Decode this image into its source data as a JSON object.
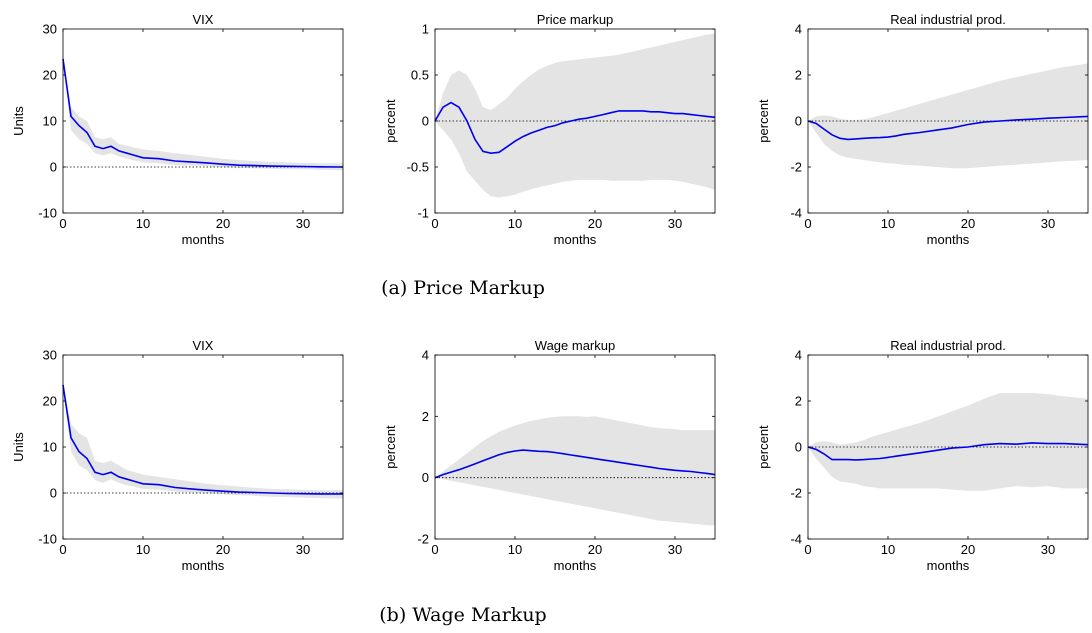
{
  "captions": [
    "(a) Price Markup",
    "(b) Wage Markup"
  ],
  "colors": {
    "line": "#0000ee",
    "band": "#e4e4e4",
    "zero": "#000000"
  },
  "chart_data": [
    {
      "type": "line",
      "group": "a",
      "title": "VIX",
      "xlabel": "months",
      "ylabel": "Units",
      "xlim": [
        0,
        35
      ],
      "ylim": [
        -10,
        30
      ],
      "xticks": [
        0,
        10,
        20,
        30
      ],
      "yticks": [
        -10,
        0,
        10,
        20,
        30
      ],
      "x": [
        0,
        1,
        2,
        3,
        4,
        5,
        6,
        7,
        8,
        9,
        10,
        12,
        14,
        16,
        18,
        20,
        22,
        24,
        26,
        28,
        30,
        32,
        35
      ],
      "series": [
        {
          "values": [
            23.5,
            11,
            9,
            7.5,
            4.5,
            4,
            4.5,
            3.5,
            3,
            2.5,
            2,
            1.8,
            1.3,
            1.1,
            0.9,
            0.6,
            0.4,
            0.3,
            0.2,
            0.15,
            0.1,
            0.05,
            0.0
          ]
        }
      ],
      "band_lower": [
        23.5,
        8,
        6,
        5,
        3,
        2.5,
        3,
        2.3,
        1.8,
        1.4,
        1,
        0.8,
        0.4,
        0.3,
        0.2,
        0,
        -0.2,
        -0.3,
        -0.4,
        -0.5,
        -0.5,
        -0.6,
        -0.7
      ],
      "band_upper": [
        23.5,
        13,
        11,
        10,
        6.5,
        6,
        6.5,
        5,
        4.6,
        4.2,
        3.8,
        3.5,
        3,
        2.6,
        2.2,
        1.8,
        1.5,
        1.3,
        1.1,
        1,
        0.9,
        0.8,
        0.8
      ]
    },
    {
      "type": "line",
      "group": "a",
      "title": "Price markup",
      "xlabel": "months",
      "ylabel": "percent",
      "xlim": [
        0,
        35
      ],
      "ylim": [
        -1,
        1
      ],
      "xticks": [
        0,
        10,
        20,
        30
      ],
      "yticks": [
        -1,
        -0.5,
        0,
        0.5,
        1
      ],
      "x": [
        0,
        1,
        2,
        3,
        4,
        5,
        6,
        7,
        8,
        9,
        10,
        11,
        12,
        13,
        14,
        15,
        16,
        17,
        18,
        19,
        20,
        21,
        22,
        23,
        24,
        25,
        26,
        27,
        28,
        29,
        30,
        31,
        32,
        33,
        34,
        35
      ],
      "series": [
        {
          "values": [
            0,
            0.15,
            0.2,
            0.15,
            0,
            -0.2,
            -0.33,
            -0.35,
            -0.34,
            -0.28,
            -0.22,
            -0.17,
            -0.13,
            -0.1,
            -0.07,
            -0.05,
            -0.02,
            0,
            0.02,
            0.03,
            0.05,
            0.07,
            0.09,
            0.11,
            0.11,
            0.11,
            0.11,
            0.1,
            0.1,
            0.09,
            0.08,
            0.08,
            0.07,
            0.06,
            0.05,
            0.04
          ]
        }
      ],
      "band_lower": [
        0,
        -0.1,
        -0.2,
        -0.35,
        -0.55,
        -0.65,
        -0.75,
        -0.82,
        -0.83,
        -0.82,
        -0.8,
        -0.77,
        -0.74,
        -0.72,
        -0.7,
        -0.68,
        -0.66,
        -0.65,
        -0.64,
        -0.64,
        -0.64,
        -0.64,
        -0.65,
        -0.65,
        -0.65,
        -0.65,
        -0.65,
        -0.64,
        -0.64,
        -0.64,
        -0.65,
        -0.66,
        -0.68,
        -0.7,
        -0.72,
        -0.75
      ],
      "band_upper": [
        0,
        0.3,
        0.5,
        0.55,
        0.5,
        0.35,
        0.15,
        0.12,
        0.18,
        0.25,
        0.35,
        0.43,
        0.5,
        0.56,
        0.6,
        0.63,
        0.65,
        0.66,
        0.67,
        0.68,
        0.69,
        0.7,
        0.71,
        0.72,
        0.74,
        0.76,
        0.78,
        0.8,
        0.82,
        0.84,
        0.86,
        0.88,
        0.9,
        0.92,
        0.94,
        0.95
      ]
    },
    {
      "type": "line",
      "group": "a",
      "title": "Real industrial prod.",
      "xlabel": "months",
      "ylabel": "percent",
      "xlim": [
        0,
        35
      ],
      "ylim": [
        -4,
        4
      ],
      "xticks": [
        0,
        10,
        20,
        30
      ],
      "yticks": [
        -4,
        -2,
        0,
        2,
        4
      ],
      "x": [
        0,
        1,
        2,
        3,
        4,
        5,
        6,
        7,
        8,
        9,
        10,
        11,
        12,
        14,
        16,
        18,
        20,
        22,
        24,
        26,
        28,
        30,
        32,
        35
      ],
      "series": [
        {
          "values": [
            0,
            -0.1,
            -0.35,
            -0.6,
            -0.75,
            -0.8,
            -0.78,
            -0.75,
            -0.73,
            -0.72,
            -0.7,
            -0.65,
            -0.58,
            -0.5,
            -0.4,
            -0.3,
            -0.15,
            -0.05,
            0,
            0.05,
            0.08,
            0.12,
            0.15,
            0.2
          ]
        }
      ],
      "band_lower": [
        0,
        -0.5,
        -1,
        -1.3,
        -1.5,
        -1.6,
        -1.65,
        -1.7,
        -1.75,
        -1.8,
        -1.83,
        -1.86,
        -1.9,
        -1.95,
        -2,
        -2.05,
        -2.05,
        -2,
        -1.95,
        -1.9,
        -1.85,
        -1.8,
        -1.75,
        -1.7
      ],
      "band_upper": [
        0,
        0.2,
        0.25,
        0.2,
        0.1,
        0.05,
        0.05,
        0.08,
        0.15,
        0.25,
        0.35,
        0.45,
        0.55,
        0.75,
        0.95,
        1.15,
        1.35,
        1.55,
        1.75,
        1.9,
        2.05,
        2.2,
        2.35,
        2.5
      ]
    },
    {
      "type": "line",
      "group": "b",
      "title": "VIX",
      "xlabel": "months",
      "ylabel": "Units",
      "xlim": [
        0,
        35
      ],
      "ylim": [
        -10,
        30
      ],
      "xticks": [
        0,
        10,
        20,
        30
      ],
      "yticks": [
        -10,
        0,
        10,
        20,
        30
      ],
      "x": [
        0,
        1,
        2,
        3,
        4,
        5,
        6,
        7,
        8,
        9,
        10,
        12,
        14,
        16,
        18,
        20,
        22,
        24,
        26,
        28,
        30,
        32,
        35
      ],
      "series": [
        {
          "values": [
            23.5,
            12,
            9,
            7.5,
            4.5,
            4,
            4.5,
            3.5,
            3,
            2.5,
            2,
            1.8,
            1.2,
            0.9,
            0.6,
            0.4,
            0.2,
            0.1,
            0,
            -0.1,
            -0.15,
            -0.2,
            -0.2
          ]
        }
      ],
      "band_lower": [
        23.5,
        9,
        6,
        5,
        2.8,
        2.2,
        3,
        2.2,
        1.7,
        1.3,
        0.9,
        0.7,
        0.3,
        0.1,
        -0.1,
        -0.3,
        -0.5,
        -0.6,
        -0.8,
        -0.9,
        -1,
        -1.1,
        -1.2
      ],
      "band_upper": [
        23.5,
        15,
        13,
        12,
        7,
        6.5,
        7,
        6,
        5,
        4.5,
        4,
        3.5,
        3,
        2.5,
        2,
        1.7,
        1.4,
        1.1,
        0.9,
        0.8,
        0.7,
        0.6,
        0.6
      ]
    },
    {
      "type": "line",
      "group": "b",
      "title": "Wage markup",
      "xlabel": "months",
      "ylabel": "percent",
      "xlim": [
        0,
        35
      ],
      "ylim": [
        -2,
        4
      ],
      "xticks": [
        0,
        10,
        20,
        30
      ],
      "yticks": [
        -2,
        0,
        2,
        4
      ],
      "x": [
        0,
        1,
        2,
        3,
        4,
        5,
        6,
        7,
        8,
        9,
        10,
        11,
        12,
        13,
        14,
        15,
        16,
        17,
        18,
        19,
        20,
        21,
        22,
        23,
        24,
        25,
        26,
        27,
        28,
        29,
        30,
        31,
        32,
        33,
        34,
        35
      ],
      "series": [
        {
          "values": [
            0,
            0.1,
            0.18,
            0.26,
            0.35,
            0.45,
            0.55,
            0.65,
            0.75,
            0.82,
            0.87,
            0.9,
            0.88,
            0.86,
            0.85,
            0.82,
            0.78,
            0.74,
            0.7,
            0.66,
            0.62,
            0.58,
            0.54,
            0.5,
            0.46,
            0.42,
            0.38,
            0.34,
            0.3,
            0.27,
            0.24,
            0.22,
            0.2,
            0.17,
            0.14,
            0.1
          ]
        }
      ],
      "band_lower": [
        0,
        -0.05,
        -0.1,
        -0.15,
        -0.2,
        -0.25,
        -0.3,
        -0.35,
        -0.4,
        -0.45,
        -0.5,
        -0.55,
        -0.6,
        -0.65,
        -0.7,
        -0.75,
        -0.8,
        -0.85,
        -0.9,
        -0.95,
        -1,
        -1.05,
        -1.1,
        -1.15,
        -1.2,
        -1.25,
        -1.3,
        -1.35,
        -1.4,
        -1.42,
        -1.45,
        -1.47,
        -1.5,
        -1.52,
        -1.55,
        -1.55
      ],
      "band_upper": [
        0,
        0.2,
        0.4,
        0.6,
        0.8,
        1,
        1.2,
        1.35,
        1.5,
        1.6,
        1.7,
        1.78,
        1.85,
        1.9,
        1.95,
        1.98,
        2,
        2,
        2,
        1.98,
        2,
        1.95,
        1.9,
        1.85,
        1.8,
        1.75,
        1.7,
        1.65,
        1.62,
        1.6,
        1.58,
        1.55,
        1.55,
        1.55,
        1.55,
        1.55
      ]
    },
    {
      "type": "line",
      "group": "b",
      "title": "Real industrial prod.",
      "xlabel": "months",
      "ylabel": "percent",
      "xlim": [
        0,
        35
      ],
      "ylim": [
        -4,
        4
      ],
      "xticks": [
        0,
        10,
        20,
        30
      ],
      "yticks": [
        -4,
        -2,
        0,
        2,
        4
      ],
      "x": [
        0,
        1,
        2,
        3,
        4,
        5,
        6,
        7,
        8,
        9,
        10,
        11,
        12,
        14,
        16,
        18,
        20,
        22,
        24,
        26,
        28,
        30,
        32,
        35
      ],
      "series": [
        {
          "values": [
            0,
            -0.1,
            -0.3,
            -0.55,
            -0.55,
            -0.55,
            -0.56,
            -0.55,
            -0.52,
            -0.5,
            -0.45,
            -0.4,
            -0.35,
            -0.25,
            -0.15,
            -0.05,
            0,
            0.1,
            0.15,
            0.12,
            0.18,
            0.15,
            0.15,
            0.1
          ]
        }
      ],
      "band_lower": [
        0,
        -0.5,
        -0.9,
        -1.3,
        -1.5,
        -1.55,
        -1.6,
        -1.7,
        -1.75,
        -1.8,
        -1.8,
        -1.8,
        -1.8,
        -1.8,
        -1.8,
        -1.85,
        -1.9,
        -1.9,
        -1.8,
        -1.7,
        -1.75,
        -1.7,
        -1.8,
        -1.8
      ],
      "band_upper": [
        0,
        0.2,
        0.25,
        0.2,
        0.1,
        0.15,
        0.2,
        0.3,
        0.45,
        0.55,
        0.65,
        0.75,
        0.85,
        1.05,
        1.3,
        1.55,
        1.8,
        2.1,
        2.35,
        2.35,
        2.35,
        2.3,
        2.2,
        2.1
      ]
    }
  ]
}
